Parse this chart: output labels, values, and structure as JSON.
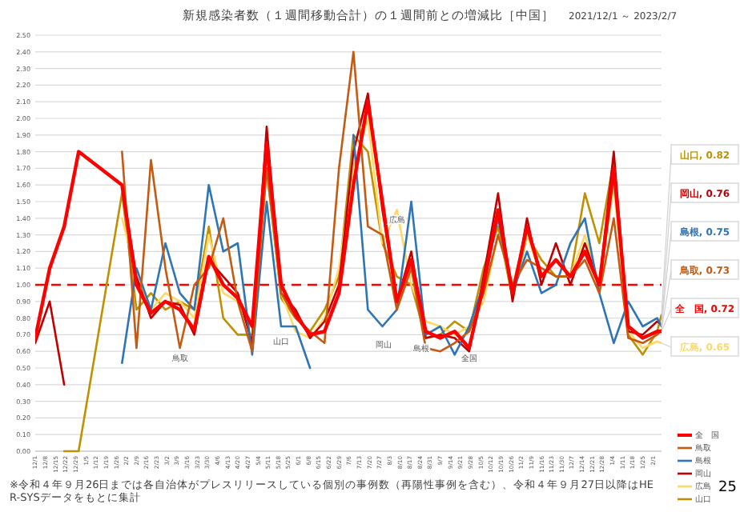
{
  "chart_data": {
    "type": "line",
    "title": "新規感染者数（１週間移動合計）の１週間前との増減比［中国］",
    "subtitle": "2021/12/1 ～ 2023/2/7",
    "x": [
      "2021-12-01",
      "2021-12-11",
      "2021-12-21",
      "2021-12-31",
      "2022-01-30",
      "2022-02-09",
      "2022-02-19",
      "2022-03-01",
      "2022-03-11",
      "2022-03-21",
      "2022-03-31",
      "2022-04-10",
      "2022-04-20",
      "2022-04-30",
      "2022-05-10",
      "2022-05-20",
      "2022-05-30",
      "2022-06-09",
      "2022-06-19",
      "2022-06-29",
      "2022-07-09",
      "2022-07-19",
      "2022-07-29",
      "2022-08-08",
      "2022-08-18",
      "2022-08-28",
      "2022-09-07",
      "2022-09-17",
      "2022-09-27",
      "2022-10-07",
      "2022-10-17",
      "2022-10-27",
      "2022-11-06",
      "2022-11-16",
      "2022-11-26",
      "2022-12-06",
      "2022-12-16",
      "2022-12-26",
      "2023-01-05",
      "2023-01-15",
      "2023-01-25",
      "2023-02-04",
      "2023-02-07"
    ],
    "series": [
      {
        "name": "全　国",
        "color": "#ff0000",
        "values": [
          0.68,
          1.1,
          1.35,
          1.8,
          1.6,
          1.0,
          0.83,
          0.9,
          0.85,
          0.73,
          1.17,
          1.0,
          0.92,
          0.75,
          1.85,
          1.0,
          0.82,
          0.7,
          0.72,
          0.95,
          1.6,
          2.1,
          1.5,
          0.9,
          1.15,
          0.72,
          0.68,
          0.72,
          0.62,
          1.0,
          1.45,
          0.95,
          1.35,
          1.05,
          1.15,
          1.05,
          1.2,
          1.0,
          1.7,
          0.75,
          0.68,
          0.72,
          0.72
        ],
        "value_labels": [
          null,
          null,
          null,
          null,
          null,
          null,
          null,
          null,
          null,
          null,
          null,
          null,
          null,
          null,
          null,
          null,
          null,
          null,
          null,
          null,
          null,
          null,
          null,
          null,
          null,
          null,
          null,
          null,
          null,
          null,
          null,
          null,
          null,
          null,
          null,
          null,
          null,
          null,
          null,
          null,
          null,
          null,
          "全　国, 0.72"
        ]
      },
      {
        "name": "鳥取",
        "color": "#c55a11",
        "values": [
          null,
          null,
          null,
          null,
          1.8,
          0.62,
          1.75,
          1.1,
          0.62,
          1.0,
          1.1,
          1.4,
          0.9,
          0.6,
          1.7,
          0.95,
          0.8,
          0.72,
          0.65,
          1.7,
          2.4,
          1.35,
          1.3,
          0.85,
          1.1,
          0.62,
          0.6,
          0.65,
          0.72,
          0.95,
          1.3,
          1.0,
          1.15,
          1.1,
          1.05,
          1.05,
          1.15,
          0.95,
          1.4,
          0.68,
          0.65,
          0.7,
          0.73
        ],
        "value_labels": [
          null,
          null,
          null,
          null,
          null,
          null,
          null,
          null,
          null,
          null,
          null,
          null,
          null,
          null,
          null,
          null,
          null,
          null,
          null,
          null,
          null,
          null,
          null,
          null,
          null,
          null,
          null,
          null,
          null,
          null,
          null,
          null,
          null,
          null,
          null,
          null,
          null,
          null,
          null,
          null,
          null,
          null,
          "鳥取, 0.73"
        ]
      },
      {
        "name": "島根",
        "color": "#2e75b6",
        "values": [
          null,
          null,
          null,
          null,
          0.53,
          1.1,
          0.85,
          1.25,
          0.95,
          0.85,
          1.6,
          1.2,
          1.25,
          0.58,
          1.5,
          0.75,
          0.75,
          0.5,
          null,
          null,
          1.9,
          0.85,
          0.75,
          0.85,
          1.5,
          0.7,
          0.75,
          0.58,
          0.75,
          1.0,
          1.4,
          0.95,
          1.2,
          0.95,
          1.0,
          1.25,
          1.4,
          0.95,
          0.65,
          0.9,
          0.75,
          0.8,
          0.75
        ],
        "value_labels": [
          null,
          null,
          null,
          null,
          null,
          null,
          null,
          null,
          null,
          null,
          null,
          null,
          null,
          null,
          null,
          null,
          null,
          null,
          null,
          null,
          null,
          null,
          null,
          null,
          null,
          null,
          null,
          null,
          null,
          null,
          null,
          null,
          null,
          null,
          null,
          null,
          null,
          null,
          null,
          null,
          null,
          null,
          "島根, 0.75"
        ]
      },
      {
        "name": "岡山",
        "color": "#c00000",
        "values": [
          0.65,
          0.9,
          0.4,
          null,
          1.6,
          1.05,
          0.8,
          0.9,
          0.88,
          0.7,
          1.15,
          1.05,
          0.95,
          0.65,
          1.95,
          0.95,
          0.85,
          0.68,
          0.78,
          1.0,
          1.8,
          2.15,
          1.45,
          0.9,
          1.2,
          0.68,
          0.7,
          0.68,
          0.6,
          1.05,
          1.55,
          0.9,
          1.4,
          1.0,
          1.25,
          1.0,
          1.25,
          1.0,
          1.8,
          0.72,
          0.7,
          0.78,
          0.76
        ],
        "value_labels": [
          null,
          null,
          null,
          null,
          null,
          null,
          null,
          null,
          null,
          null,
          null,
          null,
          null,
          null,
          null,
          null,
          null,
          null,
          null,
          null,
          null,
          null,
          null,
          null,
          null,
          null,
          null,
          null,
          null,
          null,
          null,
          null,
          null,
          null,
          null,
          null,
          null,
          null,
          null,
          null,
          null,
          null,
          "岡山, 0.76"
        ]
      },
      {
        "name": "広島",
        "color": "#ffd966",
        "values": [
          null,
          null,
          null,
          null,
          1.4,
          1.05,
          0.85,
          0.95,
          0.9,
          0.8,
          1.3,
          0.95,
          0.9,
          0.75,
          1.7,
          0.95,
          0.72,
          0.68,
          0.8,
          1.1,
          1.7,
          2.0,
          1.25,
          1.45,
          1.0,
          0.78,
          0.75,
          0.7,
          0.75,
          0.9,
          1.3,
          1.0,
          1.3,
          1.05,
          1.15,
          1.05,
          1.3,
          1.0,
          1.6,
          0.72,
          0.62,
          0.66,
          0.65
        ],
        "value_labels": [
          null,
          null,
          null,
          null,
          null,
          null,
          null,
          null,
          null,
          null,
          null,
          null,
          null,
          null,
          null,
          null,
          null,
          null,
          null,
          null,
          null,
          null,
          null,
          null,
          null,
          null,
          null,
          null,
          null,
          null,
          null,
          null,
          null,
          null,
          null,
          null,
          null,
          null,
          null,
          null,
          null,
          null,
          "広島, 0.65"
        ]
      },
      {
        "name": "山口",
        "color": "#bf9000",
        "values": [
          null,
          null,
          0.0,
          0.0,
          1.55,
          0.85,
          0.95,
          0.85,
          0.9,
          0.85,
          1.35,
          0.8,
          0.7,
          0.7,
          1.7,
          0.92,
          0.8,
          0.72,
          0.85,
          1.05,
          1.9,
          1.8,
          1.25,
          1.05,
          1.0,
          0.68,
          0.7,
          0.78,
          0.72,
          1.1,
          1.35,
          0.92,
          1.3,
          1.15,
          1.05,
          1.05,
          1.55,
          1.25,
          1.75,
          0.7,
          0.58,
          0.72,
          0.82
        ],
        "value_labels": [
          null,
          null,
          null,
          null,
          null,
          null,
          null,
          null,
          null,
          null,
          null,
          null,
          null,
          null,
          null,
          null,
          null,
          null,
          null,
          null,
          null,
          null,
          null,
          null,
          null,
          null,
          null,
          null,
          null,
          null,
          null,
          null,
          null,
          null,
          null,
          null,
          null,
          null,
          null,
          null,
          null,
          null,
          "山口, 0.82"
        ]
      }
    ],
    "xlim": [
      "2021-12-01",
      "2023-02-07"
    ],
    "ylim": [
      0,
      2.5
    ],
    "yticks": [
      {
        "value": 0,
        "label": "0.00"
      },
      {
        "value": 0.1,
        "label": "0.10"
      },
      {
        "value": 0.2,
        "label": "0.20"
      },
      {
        "value": 0.3,
        "label": "0.30"
      },
      {
        "value": 0.4,
        "label": "0.40"
      },
      {
        "value": 0.5,
        "label": "0.50"
      },
      {
        "value": 0.6,
        "label": "0.60"
      },
      {
        "value": 0.7,
        "label": "0.70"
      },
      {
        "value": 0.8,
        "label": "0.80"
      },
      {
        "value": 0.9,
        "label": "0.90"
      },
      {
        "value": 1,
        "label": "1.00"
      },
      {
        "value": 1.1,
        "label": "1.10"
      },
      {
        "value": 1.2,
        "label": "1.20"
      },
      {
        "value": 1.3,
        "label": "1.30"
      },
      {
        "value": 1.4,
        "label": "1.40"
      },
      {
        "value": 1.5,
        "label": "1.50"
      },
      {
        "value": 1.6,
        "label": "1.60"
      },
      {
        "value": 1.7,
        "label": "1.70"
      },
      {
        "value": 1.8,
        "label": "1.80"
      },
      {
        "value": 1.9,
        "label": "1.90"
      },
      {
        "value": 2,
        "label": "2.00"
      },
      {
        "value": 2.1,
        "label": "2.10"
      },
      {
        "value": 2.2,
        "label": "2.20"
      },
      {
        "value": 2.3,
        "label": "2.30"
      },
      {
        "value": 2.4,
        "label": "2.40"
      },
      {
        "value": 2.5,
        "label": "2.50"
      }
    ],
    "xticks": [
      {
        "value": "2021-12-01",
        "label": "12/1"
      },
      {
        "value": "2021-12-08",
        "label": "12/8"
      },
      {
        "value": "2021-12-15",
        "label": "12/15"
      },
      {
        "value": "2021-12-22",
        "label": "12/22"
      },
      {
        "value": "2021-12-29",
        "label": "12/29"
      },
      {
        "value": "2022-01-05",
        "label": "1/5"
      },
      {
        "value": "2022-01-12",
        "label": "1/12"
      },
      {
        "value": "2022-01-19",
        "label": "1/19"
      },
      {
        "value": "2022-01-26",
        "label": "1/26"
      },
      {
        "value": "2022-02-02",
        "label": "2/2"
      },
      {
        "value": "2022-02-09",
        "label": "2/9"
      },
      {
        "value": "2022-02-16",
        "label": "2/16"
      },
      {
        "value": "2022-02-23",
        "label": "2/23"
      },
      {
        "value": "2022-03-02",
        "label": "3/2"
      },
      {
        "value": "2022-03-09",
        "label": "3/9"
      },
      {
        "value": "2022-03-16",
        "label": "3/16"
      },
      {
        "value": "2022-03-23",
        "label": "3/23"
      },
      {
        "value": "2022-03-30",
        "label": "3/30"
      },
      {
        "value": "2022-04-06",
        "label": "4/6"
      },
      {
        "value": "2022-04-13",
        "label": "4/13"
      },
      {
        "value": "2022-04-20",
        "label": "4/20"
      },
      {
        "value": "2022-04-27",
        "label": "4/27"
      },
      {
        "value": "2022-05-04",
        "label": "5/4"
      },
      {
        "value": "2022-05-11",
        "label": "5/11"
      },
      {
        "value": "2022-05-18",
        "label": "5/18"
      },
      {
        "value": "2022-05-25",
        "label": "5/25"
      },
      {
        "value": "2022-06-01",
        "label": "6/1"
      },
      {
        "value": "2022-06-08",
        "label": "6/8"
      },
      {
        "value": "2022-06-15",
        "label": "6/15"
      },
      {
        "value": "2022-06-22",
        "label": "6/22"
      },
      {
        "value": "2022-06-29",
        "label": "6/29"
      },
      {
        "value": "2022-07-06",
        "label": "7/6"
      },
      {
        "value": "2022-07-13",
        "label": "7/13"
      },
      {
        "value": "2022-07-20",
        "label": "7/20"
      },
      {
        "value": "2022-07-27",
        "label": "7/27"
      },
      {
        "value": "2022-08-03",
        "label": "8/3"
      },
      {
        "value": "2022-08-10",
        "label": "8/10"
      },
      {
        "value": "2022-08-17",
        "label": "8/17"
      },
      {
        "value": "2022-08-24",
        "label": "8/24"
      },
      {
        "value": "2022-08-31",
        "label": "8/31"
      },
      {
        "value": "2022-09-07",
        "label": "9/7"
      },
      {
        "value": "2022-09-14",
        "label": "9/14"
      },
      {
        "value": "2022-09-21",
        "label": "9/21"
      },
      {
        "value": "2022-09-28",
        "label": "9/28"
      },
      {
        "value": "2022-10-05",
        "label": "10/5"
      },
      {
        "value": "2022-10-12",
        "label": "10/12"
      },
      {
        "value": "2022-10-19",
        "label": "10/19"
      },
      {
        "value": "2022-10-26",
        "label": "10/26"
      },
      {
        "value": "2022-11-02",
        "label": "11/2"
      },
      {
        "value": "2022-11-09",
        "label": "11/9"
      },
      {
        "value": "2022-11-16",
        "label": "11/16"
      },
      {
        "value": "2022-11-23",
        "label": "11/23"
      },
      {
        "value": "2022-11-30",
        "label": "11/30"
      },
      {
        "value": "2022-12-07",
        "label": "12/7"
      },
      {
        "value": "2022-12-14",
        "label": "12/14"
      },
      {
        "value": "2022-12-21",
        "label": "12/21"
      },
      {
        "value": "2022-12-28",
        "label": "12/28"
      },
      {
        "value": "2023-01-04",
        "label": "1/4"
      },
      {
        "value": "2023-01-11",
        "label": "1/11"
      },
      {
        "value": "2023-01-18",
        "label": "1/18"
      },
      {
        "value": "2023-01-25",
        "label": "1/25"
      },
      {
        "value": "2023-02-01",
        "label": "2/1"
      }
    ],
    "grid": "y",
    "legend": "bottom right",
    "marker": "none",
    "line_style": "solid",
    "ref_lines": [
      {
        "axis": "y",
        "value": 1.0,
        "color": "#ff0000",
        "line_style": "dashed"
      }
    ],
    "annotations": [
      {
        "text": "鳥取",
        "x": "2022-03-11",
        "y": 0.62
      },
      {
        "text": "山口",
        "x": "2022-05-20",
        "y": 0.72
      },
      {
        "text": "岡山",
        "x": "2022-07-30",
        "y": 0.7
      },
      {
        "text": "島根",
        "x": "2022-08-25",
        "y": 0.68
      },
      {
        "text": "広島",
        "x": "2022-08-08",
        "y": 1.45
      },
      {
        "text": "全国",
        "x": "2022-09-27",
        "y": 0.62
      },
      "※令和４年９月26日までは各自治体がプレスリリースしている個別の事例数（再陽性事例を含む）、令和４年９月27日以降はHER-SYSデータをもとに集計",
      "25"
    ]
  }
}
